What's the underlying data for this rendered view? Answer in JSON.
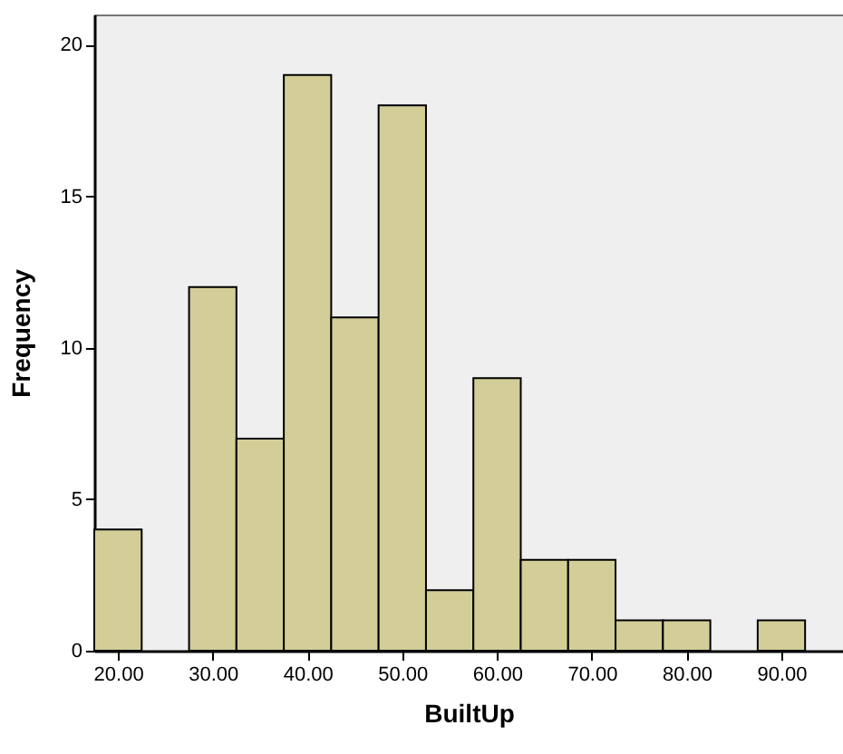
{
  "chart_data": {
    "type": "histogram",
    "xlabel": "BuiltUp",
    "ylabel": "Frequency",
    "bins": [
      17.5,
      22.5,
      27.5,
      32.5,
      37.5,
      42.5,
      47.5,
      52.5,
      57.5,
      62.5,
      67.5,
      72.5,
      77.5,
      82.5,
      87.5,
      92.5
    ],
    "values": [
      4,
      0,
      12,
      7,
      19,
      11,
      18,
      2,
      9,
      3,
      3,
      1,
      1,
      0,
      1
    ],
    "color": "#d3ce97",
    "xlim": [
      17.5,
      96.5
    ],
    "xticks": [
      {
        "value": 20,
        "label": "20.00"
      },
      {
        "value": 30,
        "label": "30.00"
      },
      {
        "value": 40,
        "label": "40.00"
      },
      {
        "value": 50,
        "label": "50.00"
      },
      {
        "value": 60,
        "label": "60.00"
      },
      {
        "value": 70,
        "label": "70.00"
      },
      {
        "value": 80,
        "label": "80.00"
      },
      {
        "value": 90,
        "label": "90.00"
      }
    ],
    "ylim": [
      0,
      21
    ],
    "yticks": [
      0,
      5,
      10,
      15,
      20
    ],
    "grid": false
  }
}
